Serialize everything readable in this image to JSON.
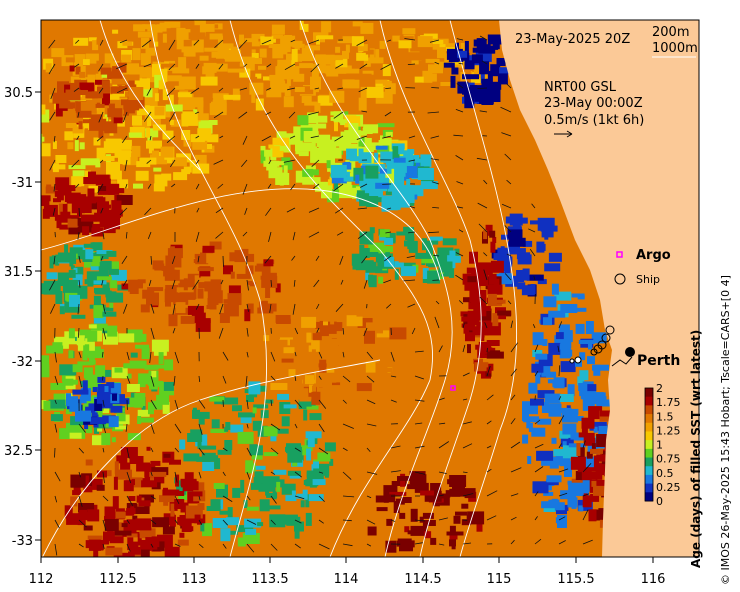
{
  "map": {
    "date_label": "23-May-2025 20Z",
    "contour_legend": [
      "200m",
      "1000m"
    ],
    "current_info": [
      "NRT00 GSL",
      "23-May 00:00Z",
      "0.5m/s (1kt 6h)"
    ],
    "legend_items": [
      {
        "label": "Argo",
        "symbol": "magenta-square"
      },
      {
        "label": "Ship",
        "symbol": "black-circle"
      }
    ],
    "city_label": "Perth",
    "lon_ticks": [
      "112",
      "112.5",
      "113",
      "113.5",
      "114",
      "114.5",
      "115",
      "115.5",
      "116"
    ],
    "lat_ticks": [
      "30.5",
      "-31",
      "31.5",
      "-32",
      "32.5",
      "-33"
    ],
    "colorbar": {
      "title": "Age (days) of filled SST (wrt latest)",
      "ticks": [
        "2",
        "1.75",
        "1.5",
        "1.25",
        "1",
        "0.75",
        "0.5",
        "0.25",
        "0"
      ],
      "colors": [
        "#7a0000",
        "#a80000",
        "#c84a00",
        "#e07800",
        "#f0a000",
        "#f8c800",
        "#c8f020",
        "#60d020",
        "#18a060",
        "#20b8d0",
        "#1878e0",
        "#1030c0",
        "#000080"
      ]
    },
    "credit": "© IMOS 26-May-2025 15:43 Hobart; Tscale=CARS+[0 4]",
    "colors": {
      "land": "#fbc997",
      "sea_dominant": "#e07800",
      "contour": "#ffffff",
      "argo": "#ff00ff"
    }
  }
}
